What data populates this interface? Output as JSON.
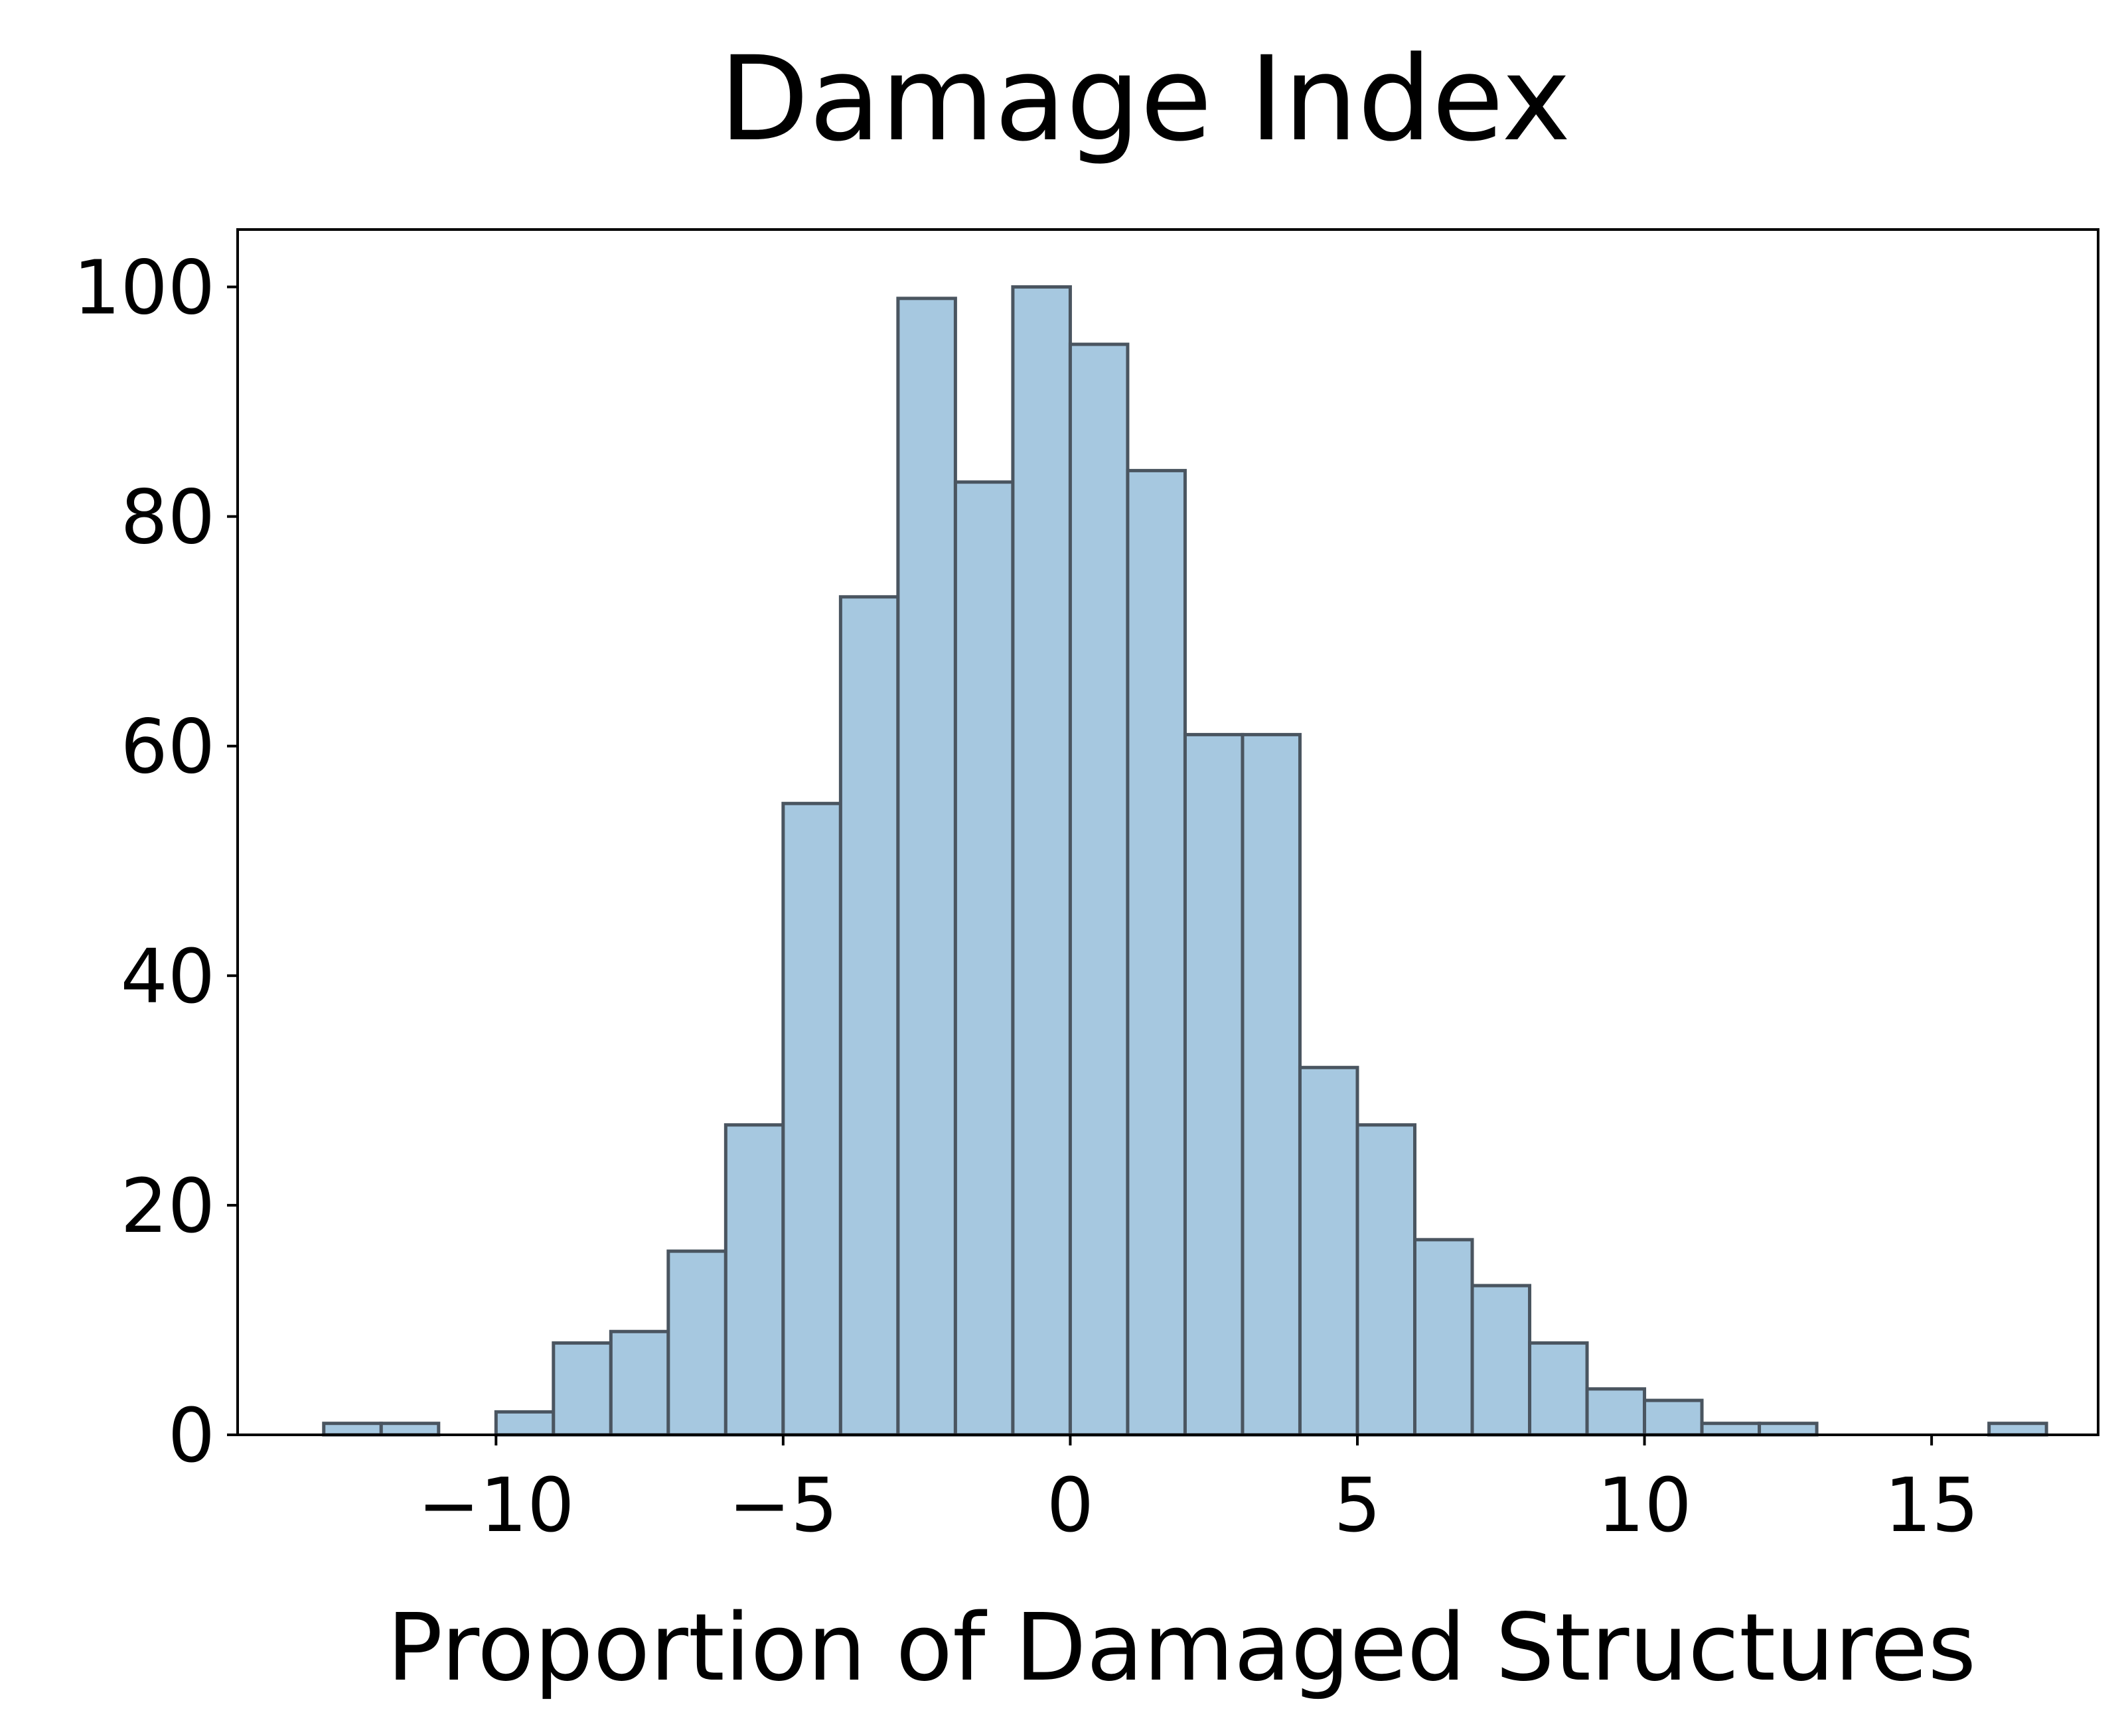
{
  "chart_data": {
    "type": "bar",
    "title": "Damage Index",
    "xlabel": "Proportion of Damaged Structures",
    "ylabel": "",
    "xlim": [
      -14.5,
      17.9
    ],
    "ylim": [
      0,
      105
    ],
    "grid": false,
    "bar_color": "#a6c8e0",
    "bar_edge_color": "#4a5560",
    "x_ticks": [
      {
        "value": -10,
        "label": "−10"
      },
      {
        "value": -5,
        "label": "−5"
      },
      {
        "value": 0,
        "label": "0"
      },
      {
        "value": 5,
        "label": "5"
      },
      {
        "value": 10,
        "label": "10"
      },
      {
        "value": 15,
        "label": "15"
      }
    ],
    "y_ticks": [
      {
        "value": 0,
        "label": "0"
      },
      {
        "value": 20,
        "label": "20"
      },
      {
        "value": 40,
        "label": "40"
      },
      {
        "value": 60,
        "label": "60"
      },
      {
        "value": 80,
        "label": "80"
      },
      {
        "value": 100,
        "label": "100"
      }
    ],
    "bin_start": -13.0,
    "bin_width": 1.0,
    "counts": [
      1,
      1,
      0,
      2,
      8,
      9,
      16,
      27,
      55,
      73,
      99,
      83,
      100,
      95,
      84,
      61,
      61,
      32,
      27,
      17,
      13,
      8,
      4,
      3,
      1,
      1,
      0,
      0,
      0,
      1
    ]
  }
}
